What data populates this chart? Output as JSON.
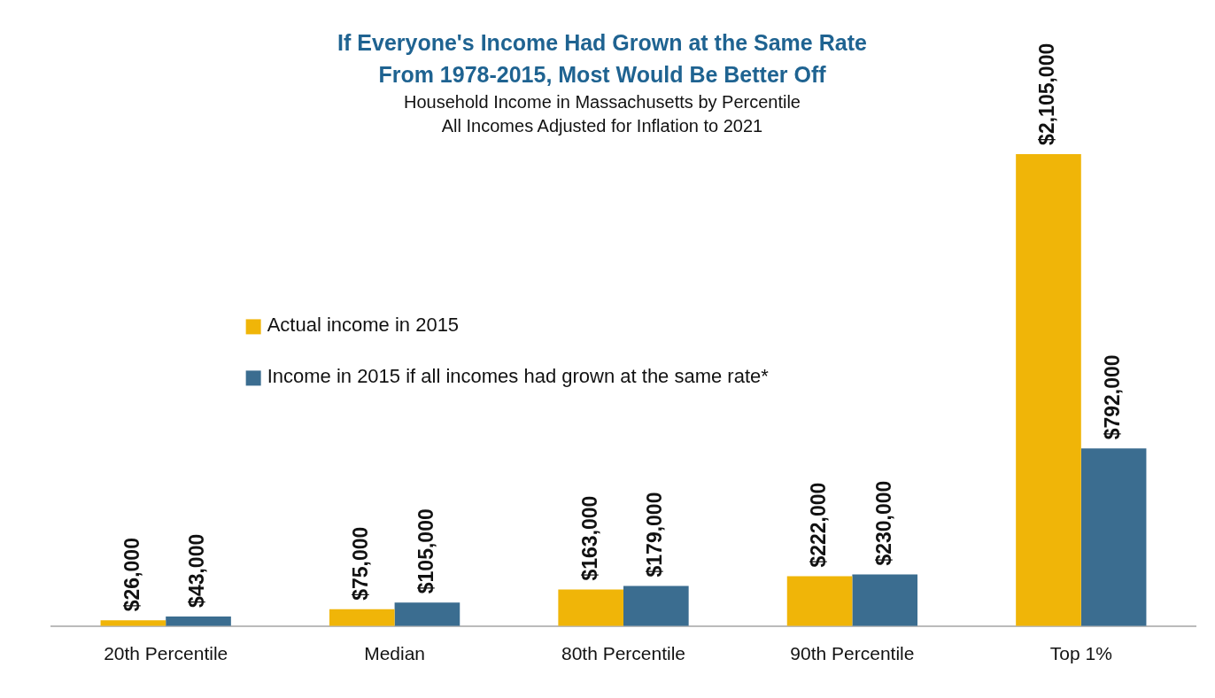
{
  "chart_data": {
    "type": "bar",
    "title": "If Everyone's Income Had Grown at the Same Rate\nFrom 1978-2015,  Most Would Be Better Off",
    "subtitle": "Household Income in Massachusetts by Percentile\nAll Incomes Adjusted for Inflation to 2021",
    "categories": [
      "20th Percentile",
      "Median",
      "80th Percentile",
      "90th Percentile",
      "Top 1%"
    ],
    "series": [
      {
        "name": "Actual income in 2015",
        "color": "#f0b508",
        "values": [
          26000,
          75000,
          163000,
          222000,
          2105000
        ],
        "value_labels": [
          "$26,000",
          "$75,000",
          "$163,000",
          "$222,000",
          "$2,105,000"
        ]
      },
      {
        "name": "Income in 2015 if all incomes had grown at the same rate*",
        "color": "#3b6d90",
        "values": [
          43000,
          105000,
          179000,
          230000,
          792000
        ],
        "value_labels": [
          "$43,000",
          "$105,000",
          "$179,000",
          "$230,000",
          "$792,000"
        ]
      }
    ],
    "legend": "left",
    "grid": false,
    "tick_labels": "x"
  }
}
